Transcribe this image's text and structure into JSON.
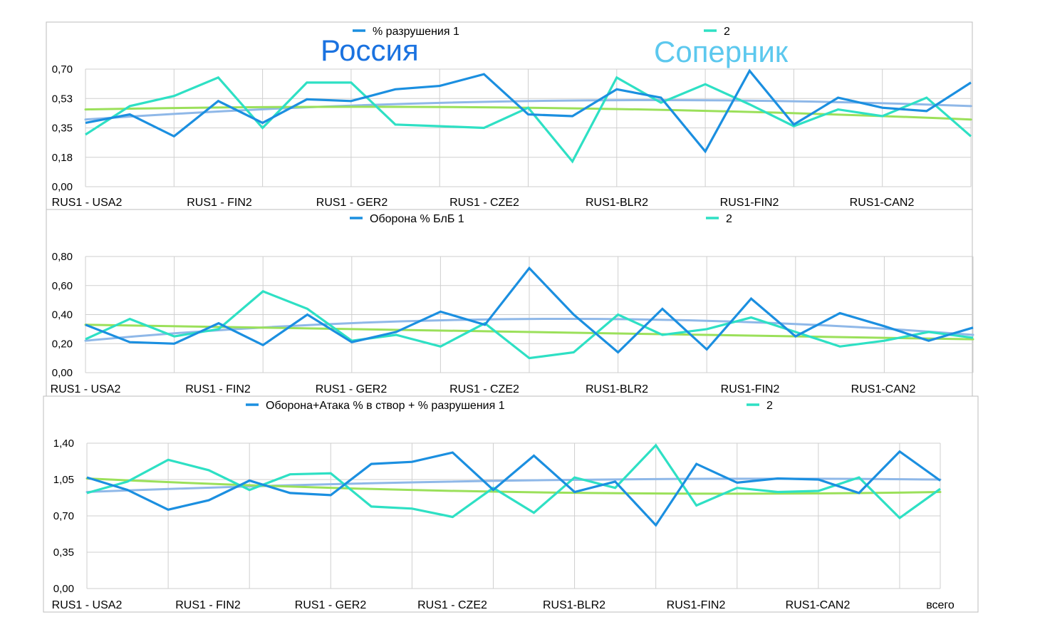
{
  "titles": {
    "russia": "Россия",
    "opponent": "Соперник",
    "russia_color": "#1a72e0",
    "opponent_color": "#5cc8ee"
  },
  "colors": {
    "series1": "#1b8fe0",
    "series2": "#2ee0c4",
    "trend1": "#8fb8e8",
    "trend2": "#9be05a",
    "grid": "#cfcfcf",
    "frame": "#bdbdbd",
    "text": "#000000"
  },
  "chart_data": [
    {
      "type": "line",
      "legend_position": "top",
      "grid": true,
      "ylim": [
        0,
        0.7
      ],
      "yticks": [
        "0,00",
        "0,18",
        "0,35",
        "0,53",
        "0,70"
      ],
      "category_labels": [
        "RUS1 - USA2",
        "RUS1 - FIN2",
        "RUS1 - GER2",
        "RUS1 - CZE2",
        "RUS1-BLR2",
        "RUS1-FIN2",
        "RUS1-CAN2"
      ],
      "series": [
        {
          "name": "% разрушения 1",
          "values": [
            0.38,
            0.43,
            0.3,
            0.51,
            0.38,
            0.52,
            0.51,
            0.58,
            0.6,
            0.67,
            0.43,
            0.42,
            0.58,
            0.53,
            0.21,
            0.69,
            0.37,
            0.53,
            0.47,
            0.45,
            0.62
          ]
        },
        {
          "name": "2",
          "values": [
            0.31,
            0.48,
            0.54,
            0.65,
            0.35,
            0.62,
            0.62,
            0.37,
            0.36,
            0.35,
            0.47,
            0.15,
            0.65,
            0.5,
            0.61,
            0.49,
            0.36,
            0.46,
            0.42,
            0.53,
            0.3
          ]
        }
      ],
      "trends": [
        {
          "values": [
            0.4,
            0.51,
            0.48
          ]
        },
        {
          "values": [
            0.46,
            0.47,
            0.4
          ]
        }
      ]
    },
    {
      "type": "line",
      "legend_position": "top",
      "grid": true,
      "ylim": [
        0,
        0.8
      ],
      "yticks": [
        "0,00",
        "0,20",
        "0,40",
        "0,60",
        "0,80"
      ],
      "category_labels": [
        "RUS1 - USA2",
        "RUS1 - FIN2",
        "RUS1 - GER2",
        "RUS1 - CZE2",
        "RUS1-BLR2",
        "RUS1-FIN2",
        "RUS1-CAN2"
      ],
      "series": [
        {
          "name": "Оборона % БлБ 1",
          "values": [
            0.33,
            0.21,
            0.2,
            0.34,
            0.19,
            0.4,
            0.21,
            0.28,
            0.42,
            0.33,
            0.72,
            0.4,
            0.14,
            0.44,
            0.16,
            0.51,
            0.25,
            0.41,
            0.32,
            0.22,
            0.31
          ]
        },
        {
          "name": "2",
          "values": [
            0.23,
            0.37,
            0.25,
            0.3,
            0.56,
            0.44,
            0.22,
            0.26,
            0.18,
            0.34,
            0.1,
            0.14,
            0.4,
            0.26,
            0.3,
            0.38,
            0.28,
            0.18,
            0.22,
            0.28,
            0.24
          ]
        }
      ],
      "trends": [
        {
          "values": [
            0.22,
            0.37,
            0.26
          ]
        },
        {
          "values": [
            0.33,
            0.28,
            0.23
          ]
        }
      ]
    },
    {
      "type": "line",
      "legend_position": "top",
      "grid": true,
      "ylim": [
        0,
        1.4
      ],
      "yticks": [
        "0,00",
        "0,35",
        "0,70",
        "1,05",
        "1,40"
      ],
      "category_labels": [
        "RUS1 - USA2",
        "RUS1 - FIN2",
        "RUS1 - GER2",
        "RUS1 - CZE2",
        "RUS1-BLR2",
        "RUS1-FIN2",
        "RUS1-CAN2",
        "всего"
      ],
      "series": [
        {
          "name": "Оборона+Атака % в створ + % разрушения 1",
          "values": [
            1.07,
            0.95,
            0.76,
            0.85,
            1.04,
            0.92,
            0.9,
            1.2,
            1.22,
            1.31,
            0.95,
            1.28,
            0.93,
            1.03,
            0.61,
            1.2,
            1.02,
            1.06,
            1.05,
            0.92,
            1.32,
            1.04
          ]
        },
        {
          "name": "2",
          "values": [
            0.92,
            1.03,
            1.24,
            1.14,
            0.95,
            1.1,
            1.11,
            0.79,
            0.77,
            0.69,
            0.97,
            0.73,
            1.07,
            0.97,
            1.38,
            0.8,
            0.97,
            0.93,
            0.94,
            1.07,
            0.68,
            0.96
          ]
        }
      ],
      "trends": [
        {
          "values": [
            0.93,
            1.04,
            1.05
          ]
        },
        {
          "values": [
            1.06,
            0.93,
            0.93
          ]
        }
      ]
    }
  ]
}
